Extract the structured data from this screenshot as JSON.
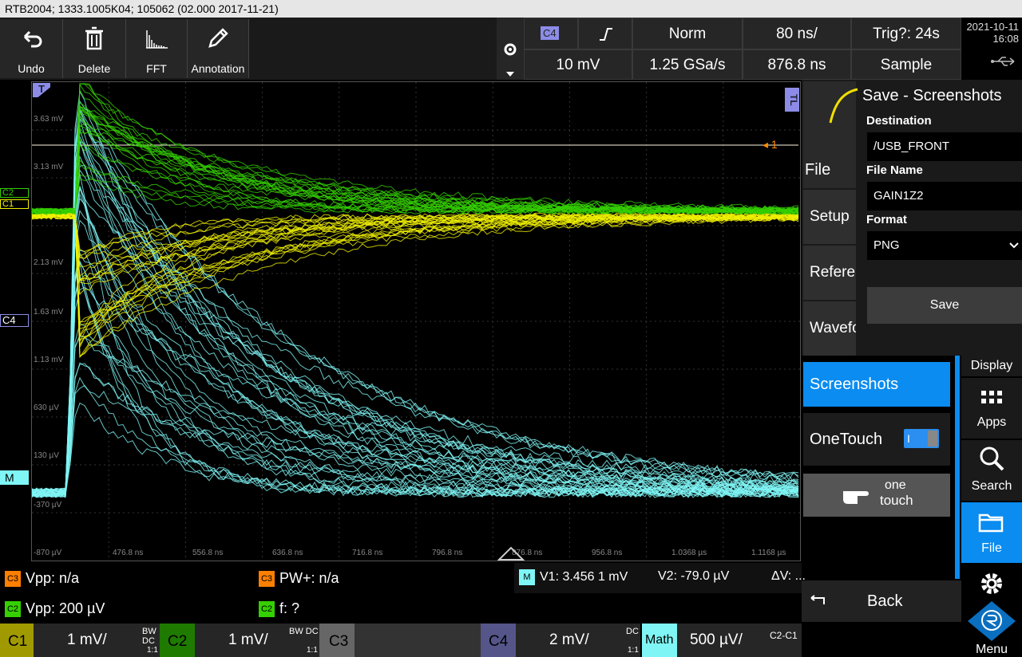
{
  "title_bar": "RTB2004; 1333.1005K04; 105062 (02.000 2017-11-21)",
  "toolbar": {
    "undo": "Undo",
    "delete": "Delete",
    "fft": "FFT",
    "annotation": "Annotation"
  },
  "header": {
    "channel": "C4",
    "trigger_mode": "Norm",
    "timebase": "80 ns/",
    "trig_status": "Trig?: 24s",
    "trigger_level": "10 mV",
    "sample_rate": "1.25 GSa/s",
    "position": "876.8 ns",
    "acq_mode": "Sample",
    "date": "2021-10-11",
    "time": "16:08"
  },
  "grid": {
    "vlabels": [
      "3.63 mV",
      "3.13 mV",
      "2.13 mV",
      "1.63 mV",
      "1.13 mV",
      "630 µV",
      "130 µV",
      "-370 µV",
      "-870 µV"
    ],
    "tlabels": [
      "476.8 ns",
      "556.8 ns",
      "636.8 ns",
      "716.8 ns",
      "796.8 ns",
      "876.8 ns",
      "956.8 ns",
      "1.0368 µs",
      "1.1168 µs"
    ],
    "ch_markers": [
      "C2",
      "C1",
      "C4",
      "M"
    ],
    "cursor1": "1",
    "trigger_T": "T",
    "trigger_TL": "TL"
  },
  "menu": {
    "title": "Save - Screenshots",
    "destination_label": "Destination",
    "destination": "/USB_FRONT",
    "filename_label": "File Name",
    "filename": "GAIN1Z2",
    "format_label": "Format",
    "format": "PNG",
    "save": "Save",
    "side_items": [
      "File",
      "Setup",
      "Referen",
      "Wavefo"
    ],
    "screenshots": "Screenshots",
    "onetouch": "OneTouch",
    "onetouch_toggle": "I",
    "onetouch_logo_top": "one",
    "onetouch_logo_bottom": "touch",
    "back": "Back"
  },
  "right_nav": {
    "display": "Display",
    "apps": "Apps",
    "search": "Search",
    "file": "File",
    "menu": "Menu"
  },
  "measurements": {
    "m1_badge": "C3",
    "m1": "Vpp: n/a",
    "m2_badge": "C3",
    "m2": "PW+: n/a",
    "m3_badge": "C2",
    "m3": "Vpp: 200 µV",
    "m4_badge": "C2",
    "m4": "f: ?",
    "cursor_badge": "M",
    "v1": "V1: 3.456 1 mV",
    "v2": "V2: -79.0 µV",
    "dv": "ΔV: ..."
  },
  "channels": {
    "c1": "C1",
    "c1_scale": "1 mV/",
    "c1_info": "BW DC",
    "c1_ratio": "1:1",
    "c2": "C2",
    "c2_scale": "1 mV/",
    "c2_info": "BW DC",
    "c2_ratio": "1:1",
    "c3": "C3",
    "c4": "C4",
    "c4_scale": "2 mV/",
    "c4_info": "DC",
    "c4_ratio": "1:1",
    "math": "Math",
    "math_scale": "500 µV/",
    "math_info": "C2-C1"
  },
  "colors": {
    "c1": "#f0f000",
    "c2": "#35d000",
    "c4": "#8c8ce8",
    "math": "#7ff5f5",
    "accent": "#1e90ff",
    "cursor": "#ff8a00"
  }
}
